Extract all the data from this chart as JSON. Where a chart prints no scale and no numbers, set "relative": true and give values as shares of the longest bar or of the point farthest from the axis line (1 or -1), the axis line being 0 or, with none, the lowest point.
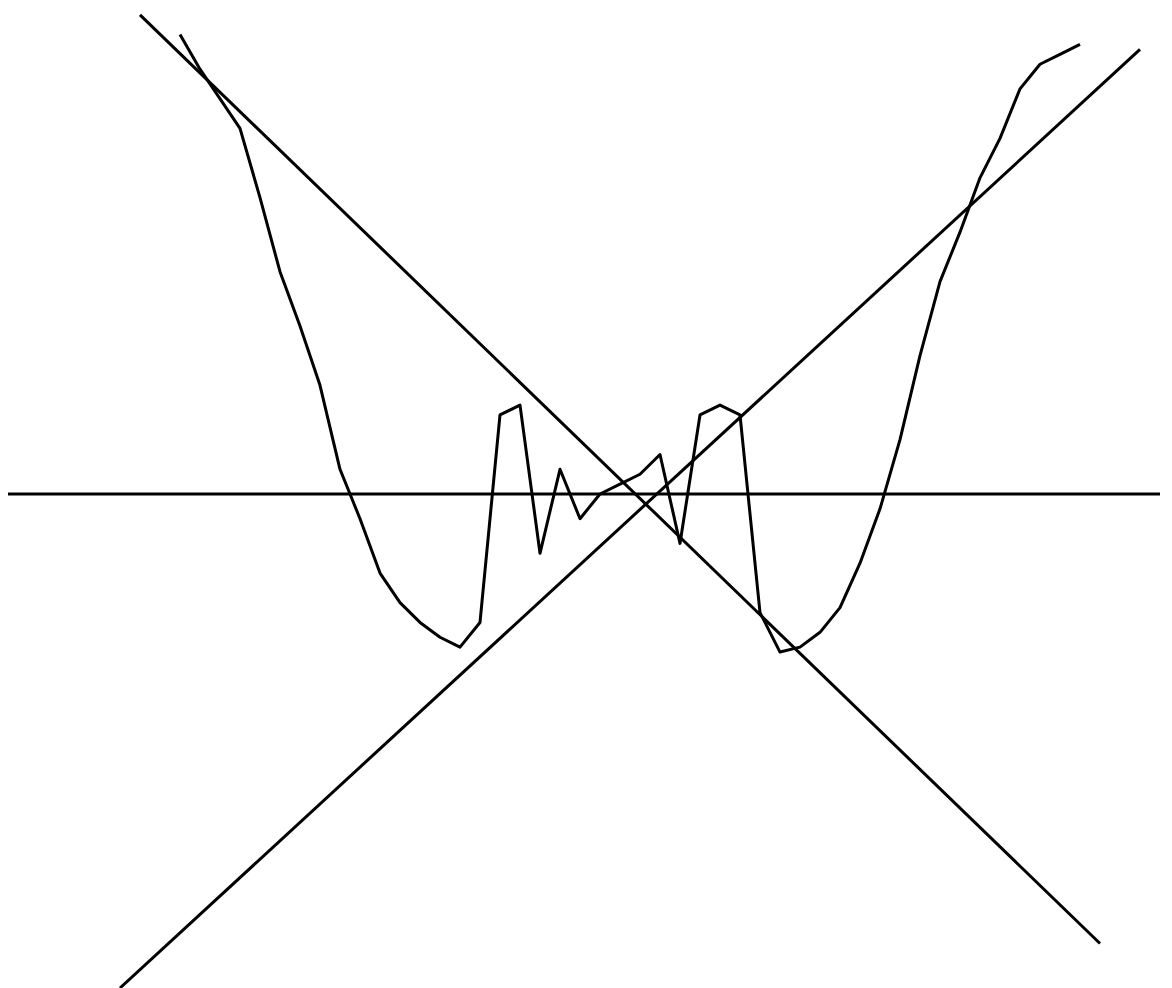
{
  "chart_data": {
    "type": "line",
    "relative": true,
    "marker": "none",
    "line_style": "solid",
    "legend": false,
    "categories": [
      null,
      null,
      null,
      null,
      null,
      null,
      null,
      null,
      null,
      null,
      null,
      null,
      null,
      null,
      null,
      null,
      null,
      null,
      null,
      null,
      null,
      null,
      null,
      null,
      null,
      null,
      null,
      null,
      null,
      null,
      null,
      null,
      null,
      null,
      null,
      null,
      null,
      null,
      null,
      null,
      null,
      null,
      null,
      null,
      null,
      null,
      null,
      null,
      null,
      null,
      null,
      null,
      null,
      null,
      null,
      null,
      null,
      null,
      null
    ],
    "series": [
      {
        "color": "#000000",
        "values": [
          null,
          null,
          null,
          null,
          null,
          null,
          null,
          null,
          null,
          0.93,
          0.86,
          null,
          0.74,
          0.6,
          0.45,
          0.34,
          0.22,
          0.05,
          -0.05,
          -0.16,
          -0.22,
          -0.26,
          -0.29,
          -0.31,
          -0.26,
          0.16,
          0.18,
          -0.12,
          0.05,
          -0.05,
          0.0,
          0.02,
          0.04,
          0.08,
          -0.1,
          0.16,
          0.18,
          0.16,
          -0.24,
          -0.32,
          -0.31,
          -0.28,
          -0.23,
          -0.14,
          -0.03,
          0.11,
          0.28,
          0.43,
          0.53,
          0.64,
          0.72,
          0.82,
          0.87,
          0.89,
          0.91,
          null,
          null,
          null,
          null
        ]
      },
      {
        "type": "line",
        "color": "#000000",
        "values": [
          null,
          null,
          null,
          null,
          null,
          null,
          null,
          0.97,
          null,
          null,
          null,
          null,
          null,
          null,
          null,
          null,
          null,
          null,
          null,
          null,
          null,
          null,
          null,
          null,
          null,
          null,
          null,
          null,
          null,
          null,
          null,
          null,
          null,
          null,
          null,
          null,
          null,
          null,
          null,
          null,
          null,
          null,
          null,
          null,
          null,
          null,
          null,
          null,
          null,
          null,
          null,
          null,
          null,
          null,
          null,
          -0.91,
          null,
          null,
          null
        ]
      },
      {
        "type": "line",
        "color": "#000000",
        "values": [
          null,
          null,
          null,
          null,
          null,
          null,
          -1.0,
          null,
          null,
          null,
          null,
          null,
          null,
          null,
          null,
          null,
          null,
          null,
          null,
          null,
          null,
          null,
          null,
          null,
          null,
          null,
          null,
          null,
          null,
          null,
          null,
          null,
          null,
          null,
          null,
          null,
          null,
          null,
          null,
          null,
          null,
          null,
          null,
          null,
          null,
          null,
          null,
          null,
          null,
          null,
          null,
          null,
          null,
          null,
          null,
          null,
          null,
          0.9,
          null
        ]
      }
    ]
  }
}
